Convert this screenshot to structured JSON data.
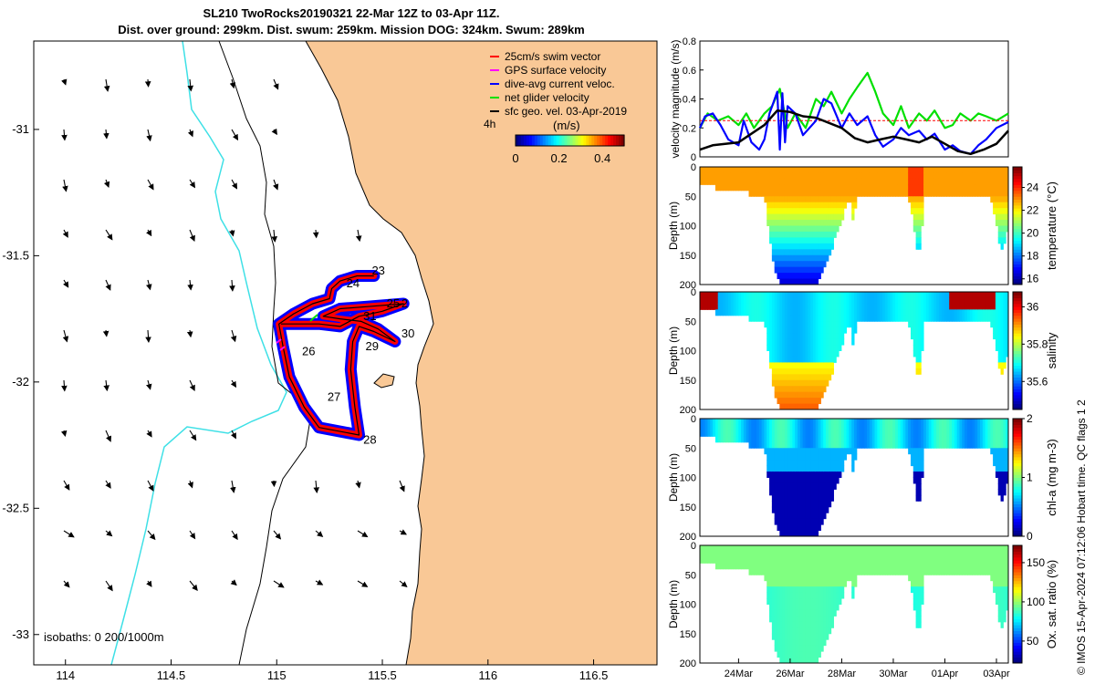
{
  "title": {
    "line1": "SL210 TwoRocks20190321 22-Mar 12Z to 03-Apr 11Z.",
    "line2": "Dist. over ground: 299km. Dist. swum: 259km. Mission DOG: 324km. Swum: 289km"
  },
  "credit": "© IMOS 15-Apr-2024 07:12:06 Hobart time. QC flags 1  2",
  "colors": {
    "land": "#f9c896",
    "coast": "#000000",
    "isobath": "#3ee0e6",
    "swim": "#ff0000",
    "gps": "#ff00ff",
    "dac": "#0000ff",
    "net": "#00e000",
    "geo": "#000000"
  },
  "chart_data": [
    {
      "type": "scatter",
      "name": "map",
      "x_ticks": [
        "114",
        "114.5",
        "115",
        "115.5",
        "116",
        "116.5"
      ],
      "y_ticks": [
        "-31",
        "-31.5",
        "-32",
        "-32.5",
        "-33"
      ],
      "xlim": [
        113.85,
        116.8
      ],
      "ylim": [
        -33.12,
        -30.65
      ],
      "legend": {
        "items": [
          "25cm/s swim vector",
          "GPS surface velocity",
          "dive-avg current veloc.",
          "net glider velocity",
          "sfc geo. vel. 03-Apr-2019"
        ],
        "units": "(m/s)",
        "duration": "4h",
        "colorbar_ticks": [
          "0",
          "0.2",
          "0.4"
        ],
        "colorbar_range": [
          0,
          0.5
        ]
      },
      "isobaths_label": "isobaths: 0   200/1000m",
      "track_labels": [
        {
          "text": "23",
          "lon": 115.45,
          "lat": -31.56
        },
        {
          "text": "24",
          "lon": 115.33,
          "lat": -31.61
        },
        {
          "text": "25",
          "lon": 115.52,
          "lat": -31.69
        },
        {
          "text": "2",
          "lon": 115.59,
          "lat": -31.69
        },
        {
          "text": "31",
          "lon": 115.41,
          "lat": -31.74
        },
        {
          "text": "30",
          "lon": 115.59,
          "lat": -31.81
        },
        {
          "text": "29",
          "lon": 115.42,
          "lat": -31.86
        },
        {
          "text": "26",
          "lon": 115.12,
          "lat": -31.88
        },
        {
          "text": "27",
          "lon": 115.24,
          "lat": -32.06
        },
        {
          "text": "28",
          "lon": 115.41,
          "lat": -32.23
        }
      ],
      "track": [
        [
          115.46,
          -31.58
        ],
        [
          115.38,
          -31.58
        ],
        [
          115.3,
          -31.6
        ],
        [
          115.26,
          -31.63
        ],
        [
          115.25,
          -31.67
        ],
        [
          115.17,
          -31.69
        ],
        [
          115.08,
          -31.73
        ],
        [
          115.01,
          -31.77
        ],
        [
          115.03,
          -31.86
        ],
        [
          115.06,
          -31.98
        ],
        [
          115.13,
          -32.1
        ],
        [
          115.2,
          -32.18
        ],
        [
          115.39,
          -32.21
        ],
        [
          115.37,
          -32.1
        ],
        [
          115.35,
          -31.95
        ],
        [
          115.36,
          -31.84
        ],
        [
          115.39,
          -31.78
        ],
        [
          115.46,
          -31.8
        ],
        [
          115.56,
          -31.84
        ],
        [
          115.48,
          -31.79
        ],
        [
          115.4,
          -31.76
        ],
        [
          115.3,
          -31.75
        ],
        [
          115.22,
          -31.74
        ],
        [
          115.3,
          -31.71
        ],
        [
          115.45,
          -31.7
        ],
        [
          115.6,
          -31.69
        ],
        [
          115.5,
          -31.72
        ],
        [
          115.39,
          -31.74
        ],
        [
          115.3,
          -31.78
        ],
        [
          115.2,
          -31.77
        ],
        [
          115.12,
          -31.77
        ],
        [
          115.02,
          -31.77
        ]
      ],
      "current_vectors": "gridded surface geostrophic velocity arrows"
    },
    {
      "type": "line",
      "name": "velocity",
      "ylabel": "velocity magnitude (m/s)",
      "ylim": [
        0,
        0.8
      ],
      "yticks": [
        "0",
        "0.2",
        "0.4",
        "0.6",
        "0.8"
      ],
      "x_days": [
        22.5,
        34.46
      ],
      "x_tick_labels": [
        "24Mar",
        "26Mar",
        "28Mar",
        "30Mar",
        "01Apr",
        "03Apr"
      ],
      "x_tick_days": [
        24,
        26,
        28,
        30,
        32,
        34
      ],
      "series": [
        {
          "key": "geo",
          "color": "#000000",
          "x": [
            22.5,
            23,
            24,
            25,
            25.5,
            26,
            26.5,
            27,
            28,
            28.5,
            29,
            29.5,
            30,
            30.5,
            31,
            31.5,
            32,
            32.5,
            33,
            33.5,
            34,
            34.46
          ],
          "y": [
            0.05,
            0.08,
            0.1,
            0.22,
            0.32,
            0.31,
            0.28,
            0.27,
            0.2,
            0.13,
            0.1,
            0.12,
            0.14,
            0.12,
            0.1,
            0.14,
            0.09,
            0.04,
            0.02,
            0.05,
            0.09,
            0.18
          ]
        },
        {
          "key": "swim",
          "color": "#ff0000",
          "x": [
            22.5,
            23.4,
            23.6,
            25.2,
            27.2,
            27.8,
            28.1,
            30.4,
            30.7,
            34.46
          ],
          "y": [
            0.25,
            0.25,
            0.25,
            0.25,
            0.25,
            0.25,
            0.25,
            0.25,
            0.25,
            0.25
          ]
        },
        {
          "key": "dac",
          "color": "#0000ff",
          "x": [
            22.5,
            22.7,
            23,
            23.3,
            23.6,
            24,
            24.2,
            24.5,
            24.8,
            25,
            25.2,
            25.5,
            25.6,
            25.7,
            25.8,
            25.9,
            26.2,
            26.5,
            27,
            27.3,
            27.6,
            28,
            28.3,
            28.6,
            29,
            29.3,
            29.6,
            30,
            30.3,
            30.6,
            31,
            31.3,
            31.6,
            32,
            32.3,
            32.6,
            33,
            33.3,
            33.6,
            34,
            34.46
          ],
          "y": [
            0.2,
            0.28,
            0.3,
            0.22,
            0.12,
            0.08,
            0.25,
            0.1,
            0.05,
            0.12,
            0.3,
            0.45,
            0.05,
            0.44,
            0.1,
            0.35,
            0.3,
            0.15,
            0.25,
            0.4,
            0.37,
            0.2,
            0.3,
            0.22,
            0.28,
            0.15,
            0.07,
            0.12,
            0.2,
            0.15,
            0.18,
            0.12,
            0.16,
            0.05,
            0.08,
            0.04,
            0.02,
            0.08,
            0.12,
            0.2,
            0.24
          ]
        },
        {
          "key": "net",
          "color": "#00e000",
          "x": [
            22.5,
            22.8,
            23.2,
            23.6,
            24,
            24.3,
            24.6,
            25,
            25.3,
            25.6,
            25.9,
            26.2,
            26.6,
            27,
            27.3,
            27.6,
            28,
            28.3,
            28.6,
            29,
            29.3,
            29.6,
            30,
            30.3,
            30.6,
            31,
            31.3,
            31.6,
            32,
            32.3,
            32.6,
            33,
            33.3,
            33.6,
            34,
            34.46
          ],
          "y": [
            0.2,
            0.3,
            0.25,
            0.28,
            0.22,
            0.3,
            0.2,
            0.3,
            0.35,
            0.47,
            0.2,
            0.3,
            0.2,
            0.4,
            0.35,
            0.45,
            0.3,
            0.4,
            0.48,
            0.58,
            0.45,
            0.3,
            0.22,
            0.35,
            0.2,
            0.3,
            0.25,
            0.32,
            0.2,
            0.22,
            0.3,
            0.25,
            0.3,
            0.28,
            0.25,
            0.3
          ]
        }
      ]
    },
    {
      "type": "heatmap",
      "name": "temperature",
      "ylabel": "Depth (m)",
      "cblabel": "temperature (°C)",
      "cbticks": [
        "16",
        "18",
        "20",
        "22",
        "24"
      ],
      "cbrange": [
        15.5,
        25.8
      ],
      "ylim": [
        0,
        200
      ],
      "yticks": [
        "0",
        "50",
        "100",
        "150",
        "200"
      ]
    },
    {
      "type": "heatmap",
      "name": "salinity",
      "ylabel": "Depth (m)",
      "cblabel": "salinity",
      "cbticks": [
        "35.6",
        "35.8",
        "36"
      ],
      "cbrange": [
        35.45,
        36.08
      ],
      "ylim": [
        0,
        200
      ],
      "yticks": [
        "0",
        "50",
        "100",
        "150",
        "200"
      ]
    },
    {
      "type": "heatmap",
      "name": "chla",
      "ylabel": "Depth (m)",
      "cblabel": "chl-a (mg m-3)",
      "cbticks": [
        "0",
        "1",
        "2"
      ],
      "cbrange": [
        0,
        2
      ],
      "ylim": [
        0,
        200
      ],
      "yticks": [
        "0",
        "50",
        "100",
        "150",
        "200"
      ]
    },
    {
      "type": "heatmap",
      "name": "oxygen",
      "ylabel": "Depth (m)",
      "cblabel": "Ox. sat. ratio (%)",
      "cbticks": [
        "50",
        "100",
        "150"
      ],
      "cbrange": [
        22,
        172
      ],
      "ylim": [
        0,
        200
      ],
      "yticks": [
        "0",
        "50",
        "100",
        "150",
        "200"
      ]
    }
  ]
}
